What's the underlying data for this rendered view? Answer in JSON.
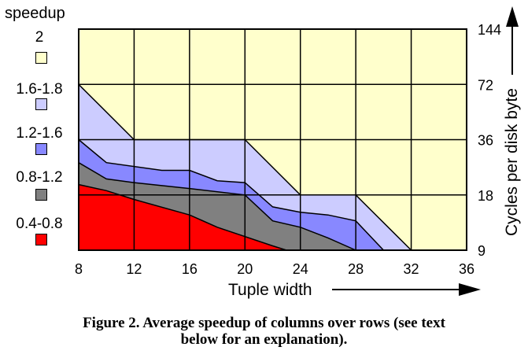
{
  "chart_data": {
    "type": "heatmap",
    "subtype": "contour-area",
    "title": "",
    "xlabel": "Tuple width",
    "ylabel": "Cycles per disk byte",
    "x_ticks": [
      "8",
      "12",
      "16",
      "20",
      "24",
      "28",
      "32",
      "36"
    ],
    "x_values": [
      8,
      12,
      16,
      20,
      24,
      28,
      32,
      36
    ],
    "xlim": [
      8,
      36
    ],
    "y_ticks": [
      "9",
      "18",
      "36",
      "72",
      "144"
    ],
    "y_values": [
      9,
      18,
      36,
      72,
      144
    ],
    "ylim": [
      9,
      144
    ],
    "y_scale": "log2",
    "grid": true,
    "legend_title": "speedup",
    "legend": [
      {
        "label": "2",
        "color": "#ffffcc"
      },
      {
        "label": "1.6-1.8",
        "color": "#ccccff"
      },
      {
        "label": "1.2-1.6",
        "color": "#8888ff"
      },
      {
        "label": "0.8-1.2",
        "color": "#808080"
      },
      {
        "label": "0.4-0.8",
        "color": "#ff0000"
      }
    ],
    "background_color": "#ffffcc",
    "boundaries": [
      {
        "name": "1.6-1.8",
        "color": "#ccccff",
        "points": [
          [
            8,
            9
          ],
          [
            8,
            72
          ],
          [
            12,
            36
          ],
          [
            20,
            36
          ],
          [
            24,
            18
          ],
          [
            28,
            18
          ],
          [
            32,
            9
          ]
        ]
      },
      {
        "name": "1.2-1.6",
        "color": "#8888ff",
        "points": [
          [
            8,
            9
          ],
          [
            8,
            36
          ],
          [
            10,
            27
          ],
          [
            14,
            24.5
          ],
          [
            16,
            24.5
          ],
          [
            18,
            21.5
          ],
          [
            20,
            21
          ],
          [
            22,
            15.5
          ],
          [
            24,
            14.5
          ],
          [
            26,
            14
          ],
          [
            28,
            13
          ],
          [
            30,
            9
          ]
        ]
      },
      {
        "name": "0.8-1.2",
        "color": "#808080",
        "points": [
          [
            8,
            9
          ],
          [
            8,
            27
          ],
          [
            10,
            22
          ],
          [
            12,
            21
          ],
          [
            16,
            19.5
          ],
          [
            20,
            18
          ],
          [
            22,
            13
          ],
          [
            24,
            12
          ],
          [
            26,
            10.5
          ],
          [
            28,
            9
          ]
        ]
      },
      {
        "name": "0.4-0.8",
        "color": "#ff0000",
        "points": [
          [
            8,
            9
          ],
          [
            8,
            20.5
          ],
          [
            10,
            19
          ],
          [
            12,
            17
          ],
          [
            16,
            14
          ],
          [
            18,
            12
          ],
          [
            22,
            9.5
          ],
          [
            23,
            9
          ]
        ]
      }
    ]
  },
  "caption_line1": "Figure 2. Average speedup of columns over rows (see text",
  "caption_line2": "below for an explanation)."
}
